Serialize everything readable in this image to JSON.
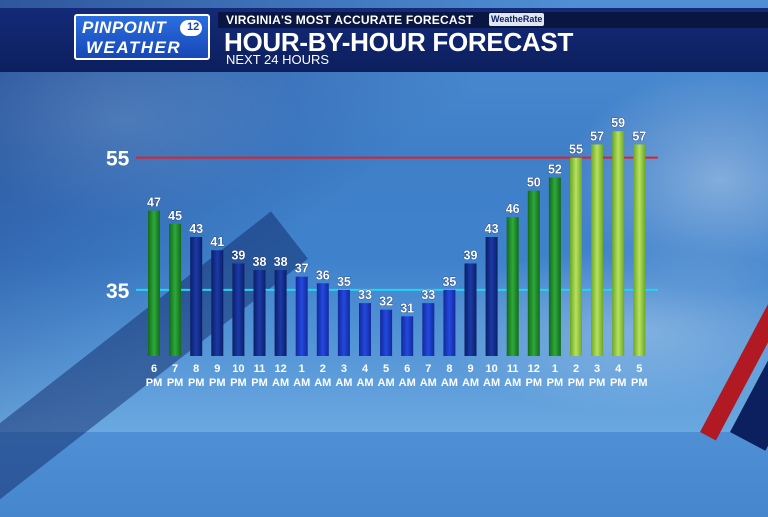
{
  "header": {
    "logo_top": "PINPOINT",
    "logo_bottom": "WEATHER",
    "logo_badge": "12",
    "tagline": "VIRGINIA'S MOST ACCURATE FORECAST",
    "weatherate": "WeatheRate",
    "title": "HOUR-BY-HOUR FORECAST",
    "subtitle": "NEXT 24 HOURS"
  },
  "colors": {
    "upper_ref_line": "#e0202a",
    "lower_ref_line": "#22d4f0",
    "bar_blue": "#1f3fd0",
    "bar_navy": "#132e86",
    "bar_green": "#1e9a2a",
    "bar_lightgreen": "#9ad040"
  },
  "chart_data": {
    "type": "bar",
    "title": "HOUR-BY-HOUR FORECAST",
    "subtitle": "NEXT 24 HOURS",
    "categories": [
      "6 PM",
      "7 PM",
      "8 PM",
      "9 PM",
      "10 PM",
      "11 PM",
      "12 AM",
      "1 AM",
      "2 AM",
      "3 AM",
      "4 AM",
      "5 AM",
      "6 AM",
      "7 AM",
      "8 AM",
      "9 AM",
      "10 AM",
      "11 AM",
      "12 PM",
      "1 PM",
      "2 PM",
      "3 PM",
      "4 PM",
      "5 PM"
    ],
    "hour_labels": [
      "6",
      "7",
      "8",
      "9",
      "10",
      "11",
      "12",
      "1",
      "2",
      "3",
      "4",
      "5",
      "6",
      "7",
      "8",
      "9",
      "10",
      "11",
      "12",
      "1",
      "2",
      "3",
      "4",
      "5"
    ],
    "period_labels": [
      "PM",
      "PM",
      "PM",
      "PM",
      "PM",
      "PM",
      "AM",
      "AM",
      "AM",
      "AM",
      "AM",
      "AM",
      "AM",
      "AM",
      "AM",
      "AM",
      "AM",
      "AM",
      "PM",
      "PM",
      "PM",
      "PM",
      "PM",
      "PM"
    ],
    "values": [
      47,
      45,
      43,
      41,
      39,
      38,
      38,
      37,
      36,
      35,
      33,
      32,
      31,
      33,
      35,
      39,
      43,
      46,
      50,
      52,
      55,
      57,
      59,
      57
    ],
    "bar_colors": [
      "green",
      "green",
      "navy",
      "navy",
      "navy",
      "navy",
      "navy",
      "blue",
      "blue",
      "blue",
      "blue",
      "blue",
      "blue",
      "blue",
      "blue",
      "navy",
      "navy",
      "green",
      "green",
      "green",
      "lightgreen",
      "lightgreen",
      "lightgreen",
      "lightgreen"
    ],
    "reference_lines": [
      {
        "label": "55",
        "value": 55,
        "color": "red"
      },
      {
        "label": "35",
        "value": 35,
        "color": "cyan"
      }
    ],
    "ylim": [
      25,
      61
    ],
    "xlabel": "",
    "ylabel": "",
    "grid": false,
    "legend": "none"
  }
}
